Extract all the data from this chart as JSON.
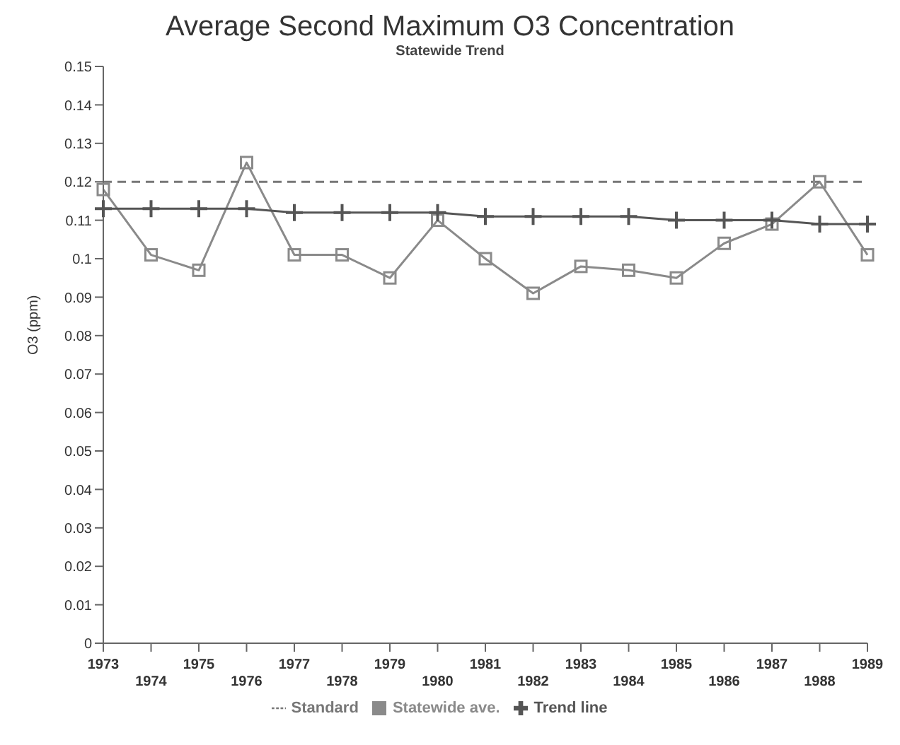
{
  "chart_data": {
    "type": "line",
    "title": "Average Second Maximum O3 Concentration",
    "subtitle": "Statewide Trend",
    "ylabel": "O3 (ppm)",
    "categories": [
      "1973",
      "1974",
      "1975",
      "1976",
      "1977",
      "1978",
      "1979",
      "1980",
      "1981",
      "1982",
      "1983",
      "1984",
      "1985",
      "1986",
      "1987",
      "1988",
      "1989"
    ],
    "series": [
      {
        "name": "Statewide ave.",
        "color": "#8a8a8a",
        "marker": "square",
        "line_style": "solid",
        "values": [
          0.118,
          0.101,
          0.097,
          0.125,
          0.101,
          0.101,
          0.095,
          0.11,
          0.1,
          0.091,
          0.098,
          0.097,
          0.095,
          0.104,
          0.109,
          0.12,
          0.101
        ]
      },
      {
        "name": "Trend line",
        "color": "#555555",
        "marker": "cross",
        "line_style": "solid",
        "values": [
          0.113,
          0.113,
          0.113,
          0.113,
          0.112,
          0.112,
          0.112,
          0.112,
          0.111,
          0.111,
          0.111,
          0.111,
          0.11,
          0.11,
          0.11,
          0.109,
          0.109
        ]
      },
      {
        "name": "Standard",
        "color": "#777777",
        "marker": "none",
        "line_style": "dashed",
        "values": [
          0.12,
          0.12,
          0.12,
          0.12,
          0.12,
          0.12,
          0.12,
          0.12,
          0.12,
          0.12,
          0.12,
          0.12,
          0.12,
          0.12,
          0.12,
          0.12,
          0.12
        ]
      }
    ],
    "ylim": [
      0,
      0.15
    ],
    "yticks": [
      0,
      0.01,
      0.02,
      0.03,
      0.04,
      0.05,
      0.06,
      0.07,
      0.08,
      0.09,
      0.1,
      0.11,
      0.12,
      0.13,
      0.14,
      0.15
    ],
    "grid": false,
    "legend": "bottom"
  }
}
